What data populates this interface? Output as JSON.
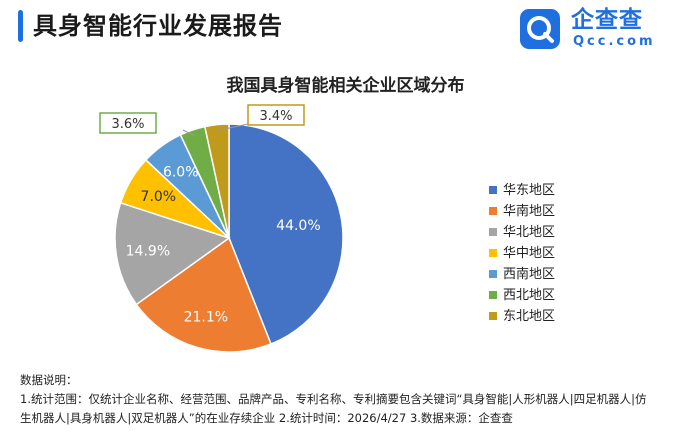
{
  "header": {
    "title": "具身智能行业发展报告"
  },
  "logo": {
    "name": "企查查",
    "domain": "Qcc.com",
    "icon": "q-magnifier-icon"
  },
  "colors": {
    "accent": "#1f6fe0"
  },
  "chart_data": {
    "type": "pie",
    "title": "我国具身智能相关企业区域分布",
    "categories": [
      "华东地区",
      "华南地区",
      "华北地区",
      "华中地区",
      "西南地区",
      "西北地区",
      "东北地区"
    ],
    "values": [
      44.0,
      21.1,
      14.9,
      7.0,
      6.0,
      3.6,
      3.4
    ],
    "labels": [
      "44.0%",
      "21.1%",
      "14.9%",
      "7.0%",
      "6.0%",
      "3.6%",
      "3.4%"
    ],
    "colors": [
      "#4472c4",
      "#ed7d31",
      "#a5a5a5",
      "#ffc000",
      "#5b9bd5",
      "#70ad47",
      "#c09a1a"
    ],
    "legend": "right"
  },
  "notes": {
    "heading": "数据说明：",
    "line1": "1.统计范围：仅统计企业名称、经营范围、品牌产品、专利名称、专利摘要包含关键词“具身智能|人形机器人|四足机器人|仿",
    "line2": "生机器人|具身机器人|双足机器人”的在业存续企业    2.统计时间：2026/4/27    3.数据来源：企查查"
  }
}
